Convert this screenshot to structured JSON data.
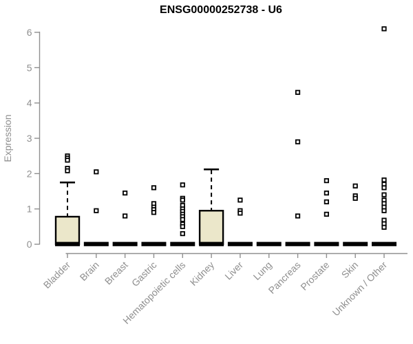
{
  "chart_data": {
    "type": "boxplot",
    "title": "ENSG00000252738 - U6",
    "xlabel": "",
    "ylabel": "Expression",
    "ylim": [
      0,
      6
    ],
    "yticks": [
      0,
      1,
      2,
      3,
      4,
      5,
      6
    ],
    "grid": false,
    "legend": null,
    "categories": [
      "Bladder",
      "Brain",
      "Breast",
      "Gastric",
      "Hematopoietic cells",
      "Kidney",
      "Liver",
      "Lung",
      "Pancreas",
      "Prostate",
      "Skin",
      "Unknown / Other"
    ],
    "series": [
      {
        "name": "Bladder",
        "q1": 0,
        "median": 0,
        "q3": 0.78,
        "whisker_low": 0,
        "whisker_high": 1.75,
        "outliers": [
          2.5,
          2.44,
          2.38,
          2.15,
          2.08
        ]
      },
      {
        "name": "Brain",
        "q1": 0,
        "median": 0,
        "q3": 0,
        "whisker_low": 0,
        "whisker_high": 0,
        "outliers": [
          2.05,
          0.95
        ]
      },
      {
        "name": "Breast",
        "q1": 0,
        "median": 0,
        "q3": 0,
        "whisker_low": 0,
        "whisker_high": 0,
        "outliers": [
          1.45,
          0.8
        ]
      },
      {
        "name": "Gastric",
        "q1": 0,
        "median": 0,
        "q3": 0,
        "whisker_low": 0,
        "whisker_high": 0,
        "outliers": [
          1.6,
          1.15,
          1.05,
          0.98,
          0.9
        ]
      },
      {
        "name": "Hematopoietic cells",
        "q1": 0,
        "median": 0,
        "q3": 0,
        "whisker_low": 0,
        "whisker_high": 0,
        "outliers": [
          1.68,
          1.3,
          1.25,
          1.1,
          1.0,
          0.93,
          0.85,
          0.78,
          0.7,
          0.57,
          0.5,
          0.3
        ]
      },
      {
        "name": "Kidney",
        "q1": 0,
        "median": 0,
        "q3": 0.95,
        "whisker_low": 0,
        "whisker_high": 2.12,
        "outliers": []
      },
      {
        "name": "Liver",
        "q1": 0,
        "median": 0,
        "q3": 0,
        "whisker_low": 0,
        "whisker_high": 0,
        "outliers": [
          1.25,
          0.95,
          0.88
        ]
      },
      {
        "name": "Lung",
        "q1": 0,
        "median": 0,
        "q3": 0,
        "whisker_low": 0,
        "whisker_high": 0,
        "outliers": []
      },
      {
        "name": "Pancreas",
        "q1": 0,
        "median": 0,
        "q3": 0,
        "whisker_low": 0,
        "whisker_high": 0,
        "outliers": [
          4.3,
          2.9,
          0.8
        ]
      },
      {
        "name": "Prostate",
        "q1": 0,
        "median": 0,
        "q3": 0,
        "whisker_low": 0,
        "whisker_high": 0,
        "outliers": [
          1.8,
          1.45,
          1.2,
          0.85
        ]
      },
      {
        "name": "Skin",
        "q1": 0,
        "median": 0,
        "q3": 0,
        "whisker_low": 0,
        "whisker_high": 0,
        "outliers": [
          1.65,
          1.37,
          1.3
        ]
      },
      {
        "name": "Unknown / Other",
        "q1": 0,
        "median": 0,
        "q3": 0,
        "whisker_low": 0,
        "whisker_high": 0,
        "outliers": [
          6.1,
          1.82,
          1.7,
          1.6,
          1.4,
          1.25,
          1.15,
          1.05,
          0.95,
          0.68,
          0.58,
          0.48
        ]
      }
    ],
    "colors": {
      "box_fill": "#ebe7ca",
      "box_border": "#000000",
      "median": "#000000",
      "outlier_stroke": "#000000",
      "outlier_fill": "#ffffff",
      "axis": "#8f8f8f",
      "title": "#000000"
    }
  }
}
